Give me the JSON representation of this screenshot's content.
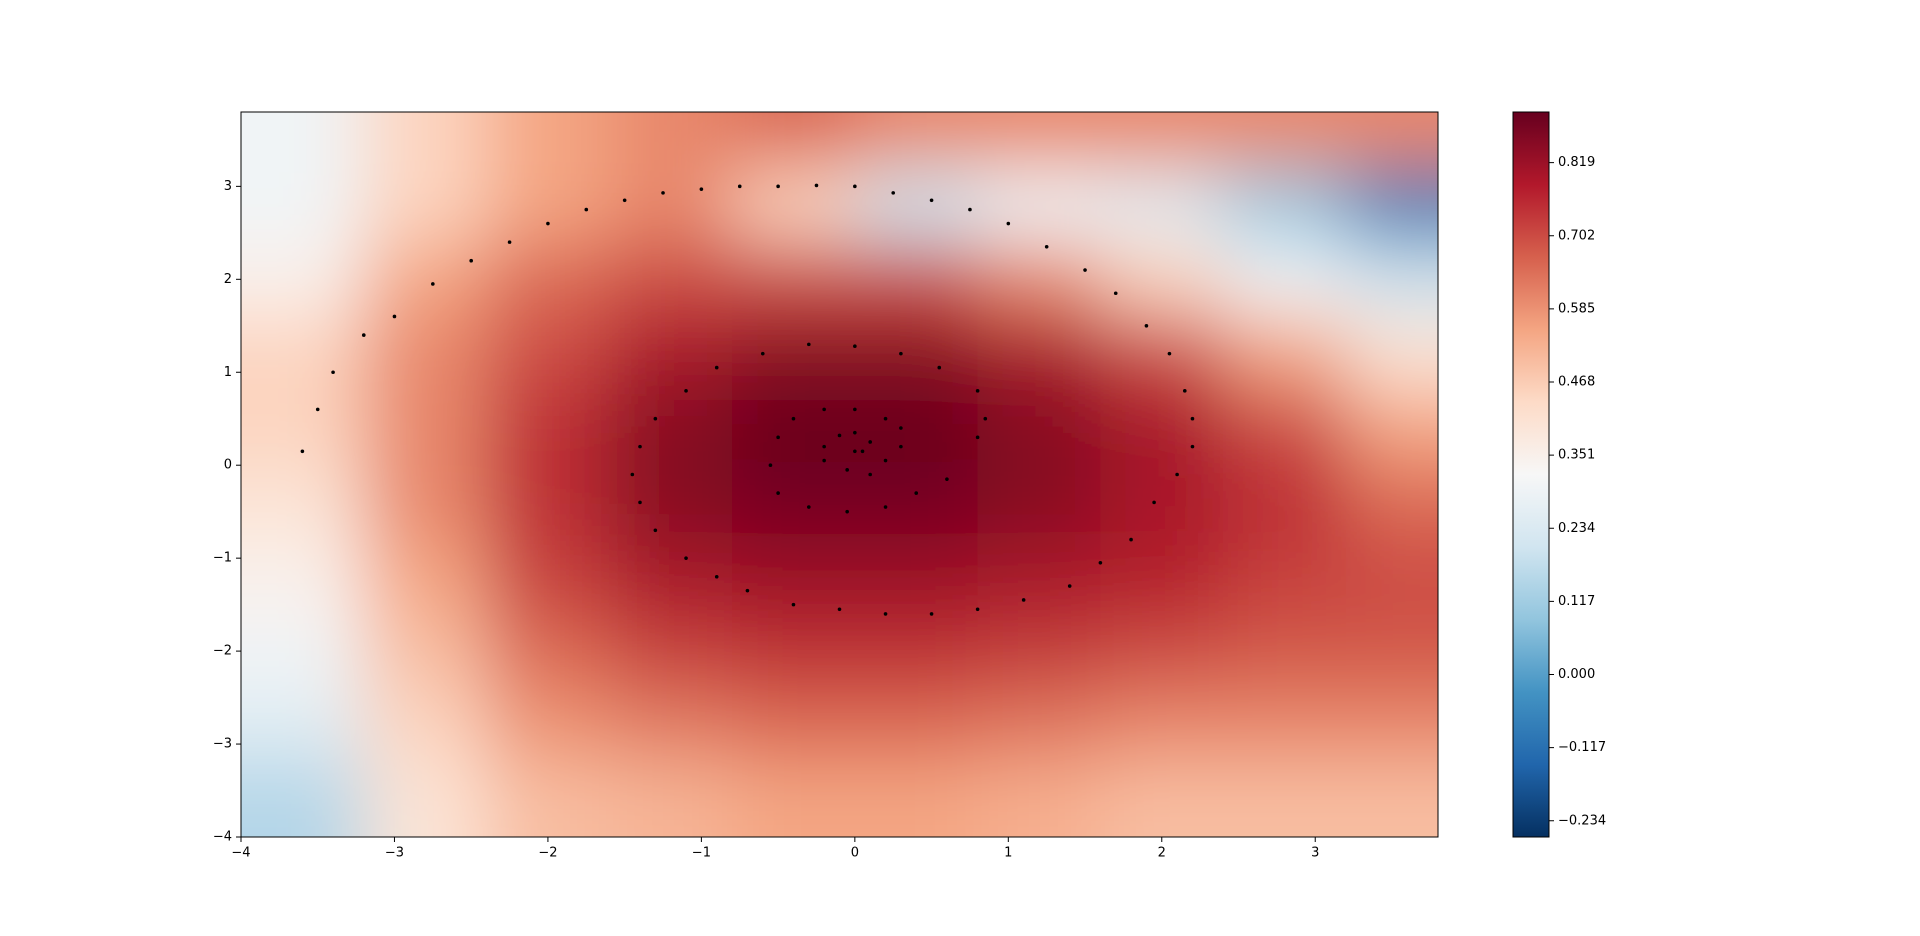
{
  "chart_data": {
    "type": "heatmap",
    "xlim": [
      -4,
      3.8
    ],
    "ylim": [
      -4,
      3.8
    ],
    "xticks": [
      {
        "value": -4,
        "label": "−4"
      },
      {
        "value": -3,
        "label": "−3"
      },
      {
        "value": -2,
        "label": "−2"
      },
      {
        "value": -1,
        "label": "−1"
      },
      0,
      1,
      2,
      3
    ],
    "yticks": [
      {
        "value": -4,
        "label": "−4"
      },
      {
        "value": -3,
        "label": "−3"
      },
      {
        "value": -2,
        "label": "−2"
      },
      {
        "value": -1,
        "label": "−1"
      },
      0,
      1,
      2,
      3
    ],
    "x": [
      -3.6,
      -2.8,
      -2.0,
      -1.2,
      -0.4,
      0.4,
      1.2,
      2.0,
      2.8,
      3.6
    ],
    "y": [
      3.6,
      2.8,
      2.0,
      1.2,
      0.4,
      -0.4,
      -1.2,
      -2.0,
      -2.8,
      -3.6
    ],
    "z": [
      [
        0.3,
        0.45,
        0.55,
        0.6,
        0.65,
        0.6,
        0.6,
        0.6,
        0.6,
        0.6
      ],
      [
        0.3,
        0.45,
        0.55,
        0.6,
        0.45,
        0.2,
        0.3,
        0.25,
        0.1,
        -0.1
      ],
      [
        0.35,
        0.55,
        0.65,
        0.7,
        0.7,
        0.7,
        0.6,
        0.45,
        0.3,
        0.2
      ],
      [
        0.45,
        0.6,
        0.7,
        0.8,
        0.85,
        0.85,
        0.8,
        0.7,
        0.55,
        0.4
      ],
      [
        0.45,
        0.6,
        0.75,
        0.85,
        0.9,
        0.9,
        0.85,
        0.8,
        0.7,
        0.55
      ],
      [
        0.4,
        0.6,
        0.75,
        0.85,
        0.88,
        0.88,
        0.85,
        0.8,
        0.75,
        0.65
      ],
      [
        0.35,
        0.55,
        0.72,
        0.8,
        0.82,
        0.82,
        0.8,
        0.78,
        0.72,
        0.7
      ],
      [
        0.3,
        0.5,
        0.65,
        0.72,
        0.75,
        0.75,
        0.73,
        0.7,
        0.68,
        0.68
      ],
      [
        0.25,
        0.45,
        0.58,
        0.62,
        0.65,
        0.65,
        0.63,
        0.6,
        0.6,
        0.6
      ],
      [
        0.15,
        0.4,
        0.5,
        0.52,
        0.55,
        0.55,
        0.53,
        0.5,
        0.5,
        0.5
      ]
    ],
    "clim": [
      -0.26,
      0.9
    ],
    "cmap": [
      "#053061",
      "#2166ac",
      "#4393c3",
      "#92c5de",
      "#d1e5f0",
      "#f7f7f7",
      "#fddbc7",
      "#f4a582",
      "#d6604d",
      "#b2182b",
      "#67001f"
    ],
    "cticks": [
      {
        "value": -0.234,
        "label": "−0.234"
      },
      {
        "value": -0.117,
        "label": "−0.117"
      },
      {
        "value": 0,
        "label": "0.000"
      },
      0.117,
      0.234,
      0.351,
      0.468,
      0.585,
      0.702,
      0.819
    ],
    "trajectory": {
      "color": "#000000",
      "x": [
        -3.6,
        -3.5,
        -3.4,
        -3.2,
        -3.0,
        -2.75,
        -2.5,
        -2.25,
        -2.0,
        -1.75,
        -1.5,
        -1.25,
        -1.0,
        -0.75,
        -0.5,
        -0.25,
        0,
        0.25,
        0.5,
        0.75,
        1.0,
        1.25,
        1.5,
        1.7,
        1.9,
        2.05,
        2.15,
        2.2,
        2.2,
        2.1,
        1.95,
        1.8,
        1.6,
        1.4,
        1.1,
        0.8,
        0.5,
        0.2,
        -0.1,
        -0.4,
        -0.7,
        -0.9,
        -1.1,
        -1.3,
        -1.4,
        -1.45,
        -1.4,
        -1.3,
        -1.1,
        -0.9,
        -0.6,
        -0.3,
        0,
        0.3,
        0.55,
        0.8,
        0.85,
        0.8,
        0.6,
        0.4,
        0.2,
        -0.05,
        -0.3,
        -0.5,
        -0.55,
        -0.5,
        -0.4,
        -0.2,
        0,
        0.2,
        0.3,
        0.3,
        0.2,
        0.1,
        -0.05,
        -0.2,
        -0.2,
        -0.1,
        0,
        0.1,
        0.05,
        0
      ],
      "y": [
        0.15,
        0.6,
        1.0,
        1.4,
        1.6,
        1.95,
        2.2,
        2.4,
        2.6,
        2.75,
        2.85,
        2.93,
        2.97,
        3.0,
        3.0,
        3.01,
        3.0,
        2.93,
        2.85,
        2.75,
        2.6,
        2.35,
        2.1,
        1.85,
        1.5,
        1.2,
        0.8,
        0.5,
        0.2,
        -0.1,
        -0.4,
        -0.8,
        -1.05,
        -1.3,
        -1.45,
        -1.55,
        -1.6,
        -1.6,
        -1.55,
        -1.5,
        -1.35,
        -1.2,
        -1.0,
        -0.7,
        -0.4,
        -0.1,
        0.2,
        0.5,
        0.8,
        1.05,
        1.2,
        1.3,
        1.28,
        1.2,
        1.05,
        0.8,
        0.5,
        0.3,
        -0.15,
        -0.3,
        -0.45,
        -0.5,
        -0.45,
        -0.3,
        0.0,
        0.3,
        0.5,
        0.6,
        0.6,
        0.5,
        0.4,
        0.2,
        0.05,
        -0.1,
        -0.05,
        0.05,
        0.2,
        0.32,
        0.35,
        0.25,
        0.15,
        0.15
      ]
    }
  }
}
